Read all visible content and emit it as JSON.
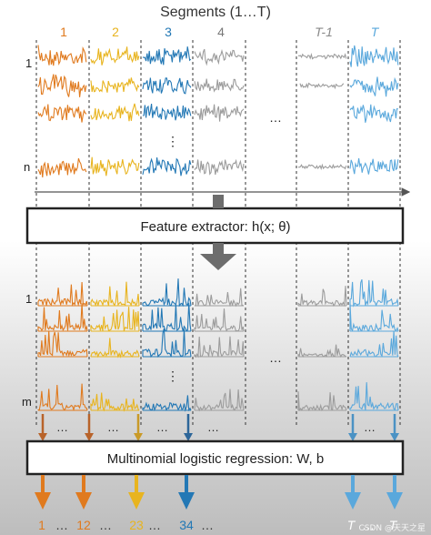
{
  "title": "Segments (1…T)",
  "segment_labels": [
    "1",
    "2",
    "3",
    "4",
    "T-1",
    "T"
  ],
  "top_row_labels": [
    "1",
    "n"
  ],
  "mid_row_labels": [
    "1",
    "m"
  ],
  "ellipsis_h": "…",
  "ellipsis_v": "⋮",
  "feature_box": "Feature extractor: h(x; θ)",
  "regression_box": "Multinomial logistic regression: W, b",
  "bottom_labels": [
    "1",
    "…",
    "12",
    "…",
    "23",
    "…",
    "34",
    "…",
    "T",
    "…",
    "T"
  ],
  "watermark": "CSDN @天天之星",
  "colors": {
    "seg1": "#e07a1e",
    "seg2": "#e8b41f",
    "seg3": "#2378b5",
    "seg4": "#9c9c9c",
    "segT1": "#9c9c9c",
    "segT": "#5aa8dc",
    "arrow_big": "#6d6d6d",
    "box_border": "#222222"
  }
}
